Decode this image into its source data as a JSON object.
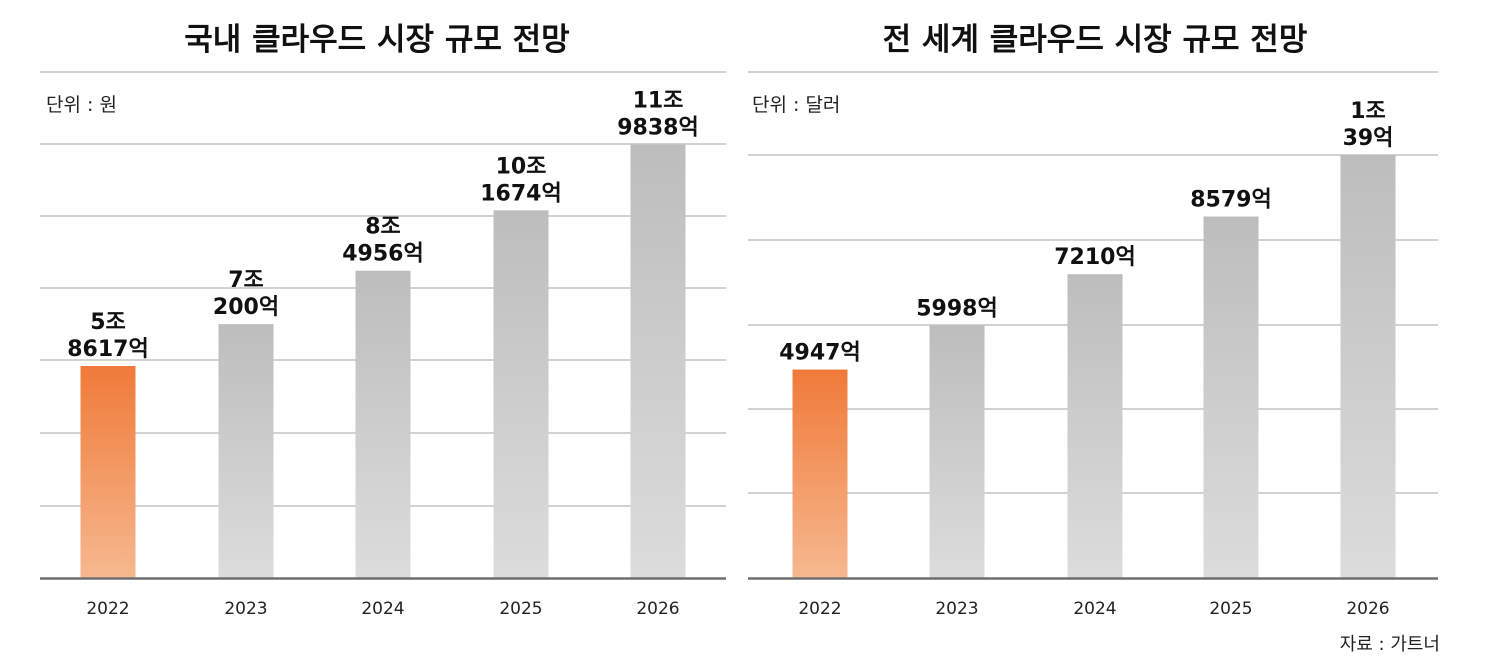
{
  "source": "자료 : 가트너",
  "chart_data": [
    {
      "type": "bar",
      "title": "국내 클라우드 시장 규모 전망",
      "unit": "단위 : 원",
      "categories": [
        "2022",
        "2023",
        "2024",
        "2025",
        "2026"
      ],
      "values": [
        58617,
        70200,
        84956,
        101674,
        119838
      ],
      "value_labels": [
        [
          "5조",
          "8617억"
        ],
        [
          "7조",
          "200억"
        ],
        [
          "8조",
          "4956억"
        ],
        [
          "10조",
          "1674억"
        ],
        [
          "11조",
          "9838억"
        ]
      ],
      "value_unit": "억 원",
      "ylim": [
        0,
        120000
      ],
      "highlight_index": 0,
      "grid": true,
      "colors": {
        "highlight_top": "#f07a3a",
        "highlight_bottom": "#f6b88e",
        "bar_top": "#bdbdbd",
        "bar_bottom": "#dcdcdc"
      }
    },
    {
      "type": "bar",
      "title": "전 세계 클라우드 시장 규모 전망",
      "unit": "단위 : 달러",
      "categories": [
        "2022",
        "2023",
        "2024",
        "2025",
        "2026"
      ],
      "values": [
        4947,
        5998,
        7210,
        8579,
        10039
      ],
      "value_labels": [
        [
          "4947억"
        ],
        [
          "5998억"
        ],
        [
          "7210억"
        ],
        [
          "8579억"
        ],
        [
          "1조",
          "39억"
        ]
      ],
      "value_unit": "억 달러",
      "ylim": [
        0,
        10039
      ],
      "highlight_index": 0,
      "grid": true,
      "colors": {
        "highlight_top": "#f07a3a",
        "highlight_bottom": "#f6b88e",
        "bar_top": "#bdbdbd",
        "bar_bottom": "#dcdcdc"
      }
    }
  ]
}
